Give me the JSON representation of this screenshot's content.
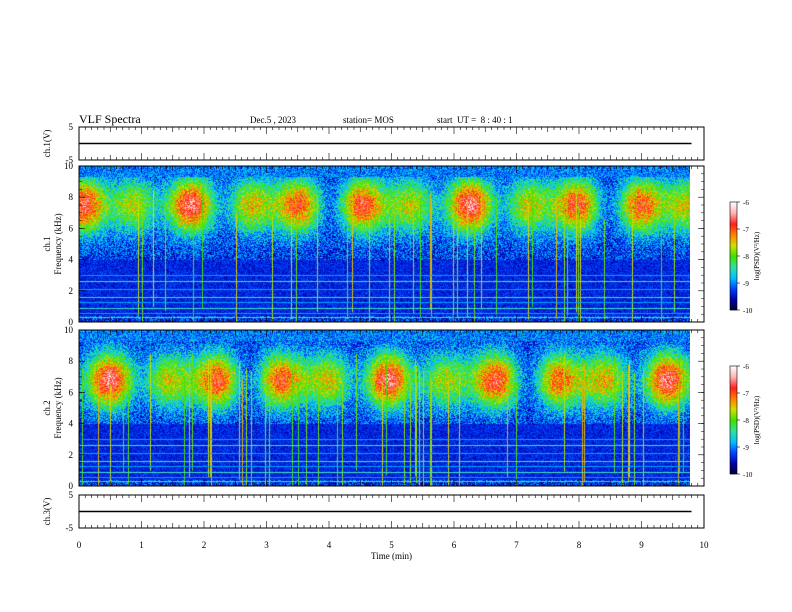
{
  "header": {
    "title": "VLF Spectra",
    "date": "Dec.5 , 2023",
    "station": "station= MOS",
    "start": "start  UT =  8 : 40 : 1"
  },
  "colors": {
    "colormap": [
      "#000030",
      "#0000aa",
      "#0040ff",
      "#00c0ff",
      "#30e0a0",
      "#40e000",
      "#d0e000",
      "#ff8000",
      "#ff2020",
      "#ffb0b0",
      "#ffffff"
    ]
  },
  "chart_data": [
    {
      "type": "line",
      "ylabel": "ch.1(V)",
      "ylim": [
        -5,
        5
      ],
      "yticks": [
        "5",
        "-5"
      ],
      "series": [
        {
          "values": [
            0,
            0
          ]
        }
      ],
      "x": [
        0,
        9.8
      ]
    },
    {
      "type": "heatmap",
      "ylabel": "ch.1\nFrequency (kHz)",
      "ylim": [
        0,
        10
      ],
      "yticks": [
        "0",
        "2",
        "4",
        "6",
        "8",
        "10"
      ],
      "band_center_khz": 7.5,
      "colorbar": {
        "label": "log(PSD)(V²/Hz)",
        "range": [
          -10,
          -6
        ],
        "ticks": [
          "-6",
          "-7",
          "-8",
          "-9",
          "-10"
        ]
      }
    },
    {
      "type": "heatmap",
      "ylabel": "ch.2\nFrequency (kHz)",
      "ylim": [
        0,
        10
      ],
      "yticks": [
        "0",
        "2",
        "4",
        "6",
        "8",
        "10"
      ],
      "band_center_khz": 6.8,
      "colorbar": {
        "label": "log(PSD)(V²/Hz)",
        "range": [
          -10,
          -6
        ],
        "ticks": [
          "-6",
          "-7",
          "-8",
          "-9",
          "-10"
        ]
      }
    },
    {
      "type": "line",
      "ylabel": "ch.3(V)",
      "ylim": [
        -5,
        5
      ],
      "yticks": [
        "5",
        "-5"
      ],
      "series": [
        {
          "values": [
            0,
            0
          ]
        }
      ],
      "x": [
        0,
        9.8
      ]
    }
  ],
  "xaxis": {
    "label": "Time  (min)",
    "xlim": [
      0,
      10
    ],
    "ticks": [
      "0",
      "1",
      "2",
      "3",
      "4",
      "5",
      "6",
      "7",
      "8",
      "9",
      "10"
    ]
  }
}
